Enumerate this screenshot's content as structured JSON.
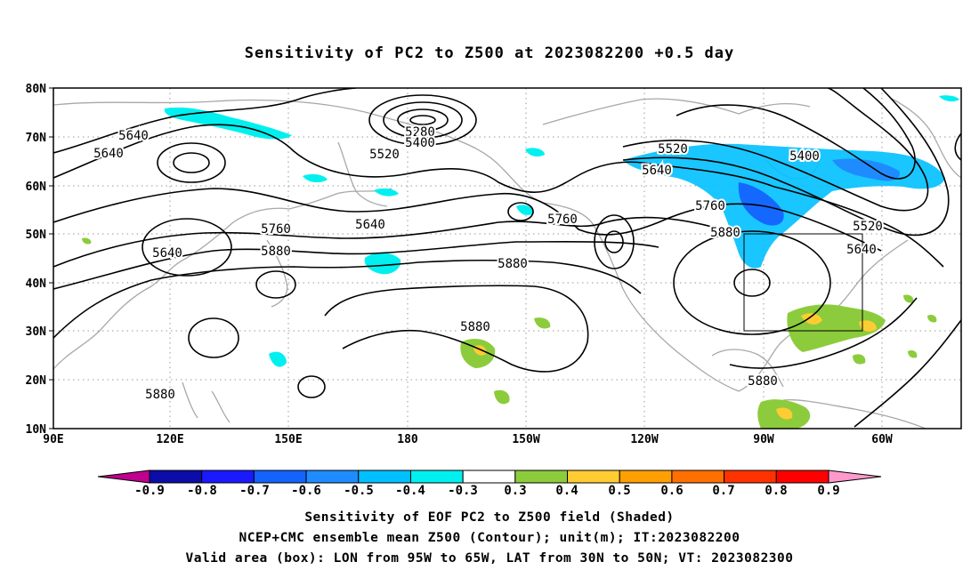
{
  "title": "Sensitivity of PC2 to Z500 at 2023082200 +0.5 day",
  "map": {
    "lat_range": [
      10,
      80
    ],
    "lon_range_east": [
      90,
      310
    ],
    "lat_ticks": [
      "80N",
      "70N",
      "60N",
      "50N",
      "40N",
      "30N",
      "20N",
      "10N"
    ],
    "lon_ticks": [
      "90E",
      "120E",
      "150E",
      "180",
      "150W",
      "120W",
      "90W",
      "60W"
    ],
    "grid": "dotted",
    "valid_box": {
      "lon_west": -95,
      "lon_east": -65,
      "lat_south": 30,
      "lat_north": 50
    },
    "contour_labels": [
      "5640",
      "5640",
      "5640",
      "5640",
      "5280",
      "5400",
      "5520",
      "5640",
      "5760",
      "5760",
      "5880",
      "5880",
      "5880",
      "5520",
      "5640",
      "5760",
      "5880",
      "5400",
      "5520",
      "5640",
      "5880",
      "5880"
    ]
  },
  "colorbar": {
    "labels": [
      "-0.9",
      "-0.8",
      "-0.7",
      "-0.6",
      "-0.5",
      "-0.4",
      "-0.3",
      "0.3",
      "0.4",
      "0.5",
      "0.6",
      "0.7",
      "0.8",
      "0.9"
    ],
    "colors": [
      "#c0008f",
      "#0c0ca8",
      "#1a1aff",
      "#1463ff",
      "#1e8cff",
      "#00c0ff",
      "#00f0f0",
      "#ffffff",
      "#8ccc3c",
      "#ffcc33",
      "#ffa000",
      "#ff7000",
      "#ff3300",
      "#ff0000",
      "#ff99cc"
    ]
  },
  "captions": [
    "Sensitivity of EOF PC2 to Z500 field (Shaded)",
    "NCEP+CMC ensemble mean Z500 (Contour); unit(m); IT:2023082200",
    "Valid area (box): LON from 95W to 65W, LAT from 30N to 50N; VT: 2023082300"
  ]
}
